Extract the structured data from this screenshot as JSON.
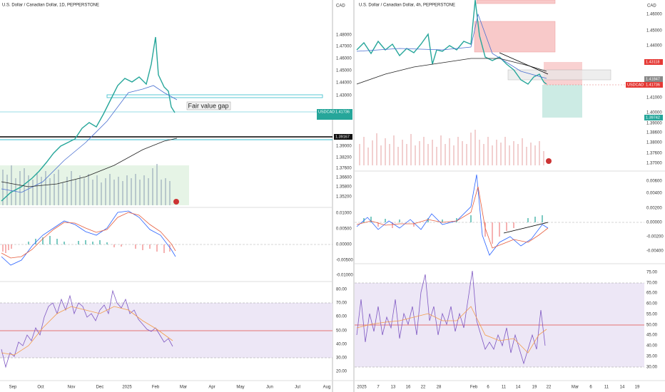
{
  "left": {
    "title": "U.S. Dollar / Canadian Dollar, 1D, PEPPERSTONE",
    "unit": "CAD",
    "price_ticks": [
      "1.48000",
      "1.47000",
      "1.46000",
      "1.45000",
      "1.44000",
      "1.43000",
      "1.39000",
      "1.38200",
      "1.37600",
      "1.36600",
      "1.35800",
      "1.35200"
    ],
    "tags": [
      {
        "name": "USDCAD",
        "price": "1.41736"
      },
      {
        "price": "1.39167"
      }
    ],
    "annotation": "Fair value gap",
    "macd_ticks": [
      "0.01000",
      "0.00500",
      "0.00000",
      "-0.00500",
      "-0.01000"
    ],
    "rsi_ticks": [
      "80.00",
      "70.00",
      "60.00",
      "50.00",
      "40.00",
      "30.00",
      "20.00"
    ],
    "time_ticks": [
      "Sep",
      "Oct",
      "Nov",
      "Dec",
      "2025",
      "Feb",
      "Mar",
      "Apr",
      "May",
      "Jun",
      "Jul",
      "Aug"
    ]
  },
  "right": {
    "title": "U.S. Dollar / Canadian Dollar, 4h, PEPPERSTONE",
    "unit": "CAD",
    "price_ticks": [
      "1.46000",
      "1.45000",
      "1.44000",
      "1.41000",
      "1.40000",
      "1.39000",
      "1.38600",
      "1.38000",
      "1.37600",
      "1.37000"
    ],
    "tags": [
      {
        "price": "1.43118"
      },
      {
        "price": "1.41847"
      },
      {
        "name": "USDCAD",
        "price": "1.41736"
      },
      {
        "price": "1.39742"
      }
    ],
    "macd_ticks": [
      "0.00600",
      "0.00400",
      "0.00200",
      "0.00000",
      "-0.00200",
      "-0.00400"
    ],
    "rsi_ticks": [
      "75.00",
      "70.00",
      "65.00",
      "60.00",
      "55.00",
      "50.00",
      "45.00",
      "40.00",
      "35.00",
      "30.00"
    ],
    "time_ticks": [
      "2025",
      "7",
      "13",
      "16",
      "22",
      "28",
      "Feb",
      "6",
      "11",
      "14",
      "19",
      "22",
      "Mar",
      "6",
      "11",
      "14",
      "19"
    ]
  }
}
